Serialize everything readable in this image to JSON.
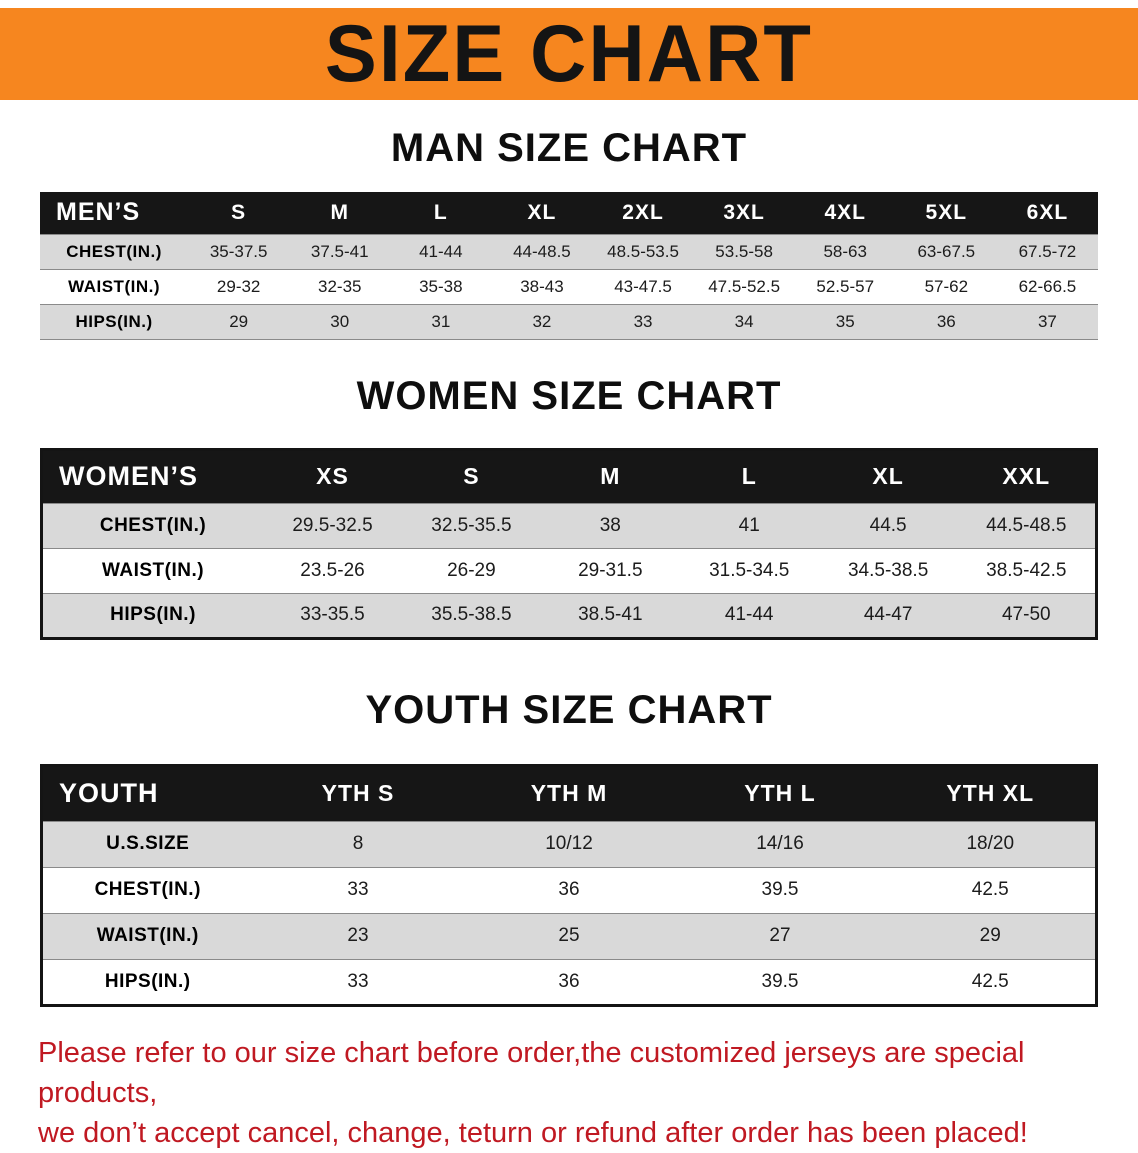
{
  "banner": {
    "title": "SIZE CHART"
  },
  "colors": {
    "banner_bg": "#F6861F",
    "header_bg": "#161616",
    "row_shade": "#D9D9D9",
    "disclaimer_red": "#C01922"
  },
  "men": {
    "heading": "MAN SIZE CHART",
    "table": {
      "header": [
        "MEN’S",
        "S",
        "M",
        "L",
        "XL",
        "2XL",
        "3XL",
        "4XL",
        "5XL",
        "6XL"
      ],
      "rows": [
        [
          "CHEST(IN.)",
          "35-37.5",
          "37.5-41",
          "41-44",
          "44-48.5",
          "48.5-53.5",
          "53.5-58",
          "58-63",
          "63-67.5",
          "67.5-72"
        ],
        [
          "WAIST(IN.)",
          "29-32",
          "32-35",
          "35-38",
          "38-43",
          "43-47.5",
          "47.5-52.5",
          "52.5-57",
          "57-62",
          "62-66.5"
        ],
        [
          "HIPS(IN.)",
          "29",
          "30",
          "31",
          "32",
          "33",
          "34",
          "35",
          "36",
          "37"
        ]
      ]
    }
  },
  "women": {
    "heading": "WOMEN SIZE CHART",
    "table": {
      "header": [
        "WOMEN’S",
        "XS",
        "S",
        "M",
        "L",
        "XL",
        "XXL"
      ],
      "rows": [
        [
          "CHEST(IN.)",
          "29.5-32.5",
          "32.5-35.5",
          "38",
          "41",
          "44.5",
          "44.5-48.5"
        ],
        [
          "WAIST(IN.)",
          "23.5-26",
          "26-29",
          "29-31.5",
          "31.5-34.5",
          "34.5-38.5",
          "38.5-42.5"
        ],
        [
          "HIPS(IN.)",
          "33-35.5",
          "35.5-38.5",
          "38.5-41",
          "41-44",
          "44-47",
          "47-50"
        ]
      ]
    }
  },
  "youth": {
    "heading": "YOUTH SIZE CHART",
    "table": {
      "header": [
        "YOUTH",
        "YTH S",
        "YTH M",
        "YTH L",
        "YTH XL"
      ],
      "rows": [
        [
          "U.S.SIZE",
          "8",
          "10/12",
          "14/16",
          "18/20"
        ],
        [
          "CHEST(IN.)",
          "33",
          "36",
          "39.5",
          "42.5"
        ],
        [
          "WAIST(IN.)",
          "23",
          "25",
          "27",
          "29"
        ],
        [
          "HIPS(IN.)",
          "33",
          "36",
          "39.5",
          "42.5"
        ]
      ]
    }
  },
  "disclaimer": {
    "line1": "Please refer to our size chart before order,the customized jerseys are special products,",
    "line2": "we don’t accept cancel, change, teturn or refund after order has been placed!"
  }
}
